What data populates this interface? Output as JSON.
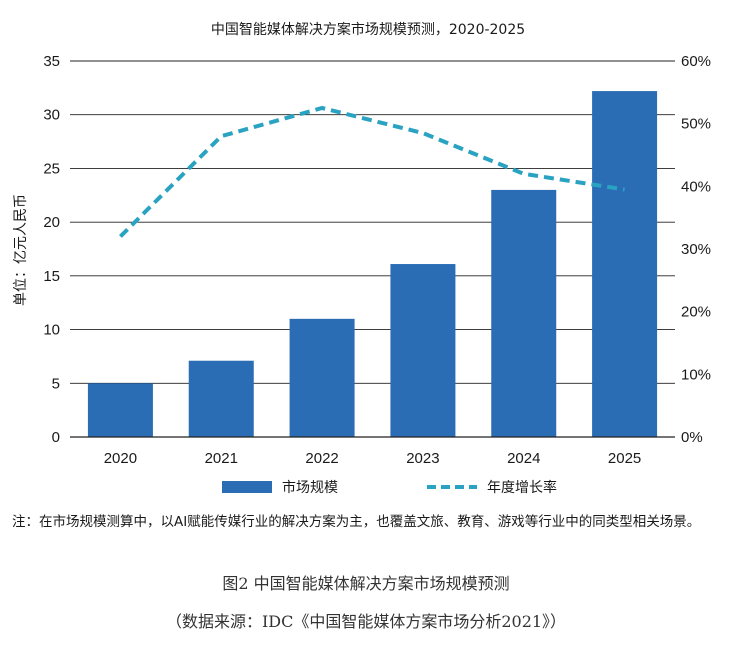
{
  "chart_data": {
    "type": "bar",
    "title": "中国智能媒体解决方案市场规模预测，2020-2025",
    "ylabel": "单位：亿元人民币",
    "categories": [
      "2020",
      "2021",
      "2022",
      "2023",
      "2024",
      "2025"
    ],
    "ylim": [
      0,
      35
    ],
    "yticks": [
      "0",
      "5",
      "10",
      "15",
      "20",
      "25",
      "30",
      "35"
    ],
    "y2lim": [
      0,
      60
    ],
    "y2ticks": [
      "0%",
      "10%",
      "20%",
      "30%",
      "40%",
      "50%",
      "60%"
    ],
    "grid": true,
    "legend_position": "bottom",
    "series": [
      {
        "name": "市场规模",
        "kind": "bar",
        "axis": "left",
        "color": "#2a6db5",
        "values": [
          5.0,
          7.1,
          11.0,
          16.1,
          23.0,
          32.2
        ]
      },
      {
        "name": "年度增长率",
        "kind": "line-dashed",
        "axis": "right",
        "color": "#2aa3c2",
        "values": [
          32,
          48,
          52.5,
          48.5,
          42,
          39.5
        ]
      }
    ]
  },
  "note": "注：在市场规模测算中，以AI赋能传媒行业的解决方案为主，也覆盖文旅、教育、游戏等行业中的同类型相关场景。",
  "figure_caption": "图2 中国智能媒体解决方案市场规模预测",
  "source_caption": "（数据来源：IDC《中国智能媒体方案市场分析2021》）"
}
